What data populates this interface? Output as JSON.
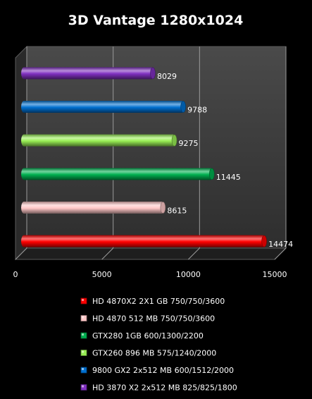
{
  "chart_data": {
    "type": "bar",
    "orientation": "horizontal",
    "title": "3D Vantage 1280x1024",
    "xlabel": "",
    "ylabel": "",
    "xlim": [
      0,
      15000
    ],
    "x_ticks": [
      0,
      5000,
      10000,
      15000
    ],
    "grid": true,
    "legend_position": "bottom",
    "series": [
      {
        "name": "HD 4870X2 2X1 GB 750/750/3600",
        "value": 14474,
        "color": "#ff0000"
      },
      {
        "name": "HD 4870 512 MB 750/750/3600",
        "value": 8615,
        "color": "#ffc8c8"
      },
      {
        "name": "GTX280 1GB 600/1300/2200",
        "value": 11445,
        "color": "#00b050"
      },
      {
        "name": "GTX260 896 MB 575/1240/2000",
        "value": 9275,
        "color": "#99ee55"
      },
      {
        "name": "9800 GX2 2x512 MB 600/1512/2000",
        "value": 9788,
        "color": "#0070d0"
      },
      {
        "name": "HD 3870 X2 2x512 MB 825/825/1800",
        "value": 8029,
        "color": "#8030c0"
      }
    ]
  }
}
